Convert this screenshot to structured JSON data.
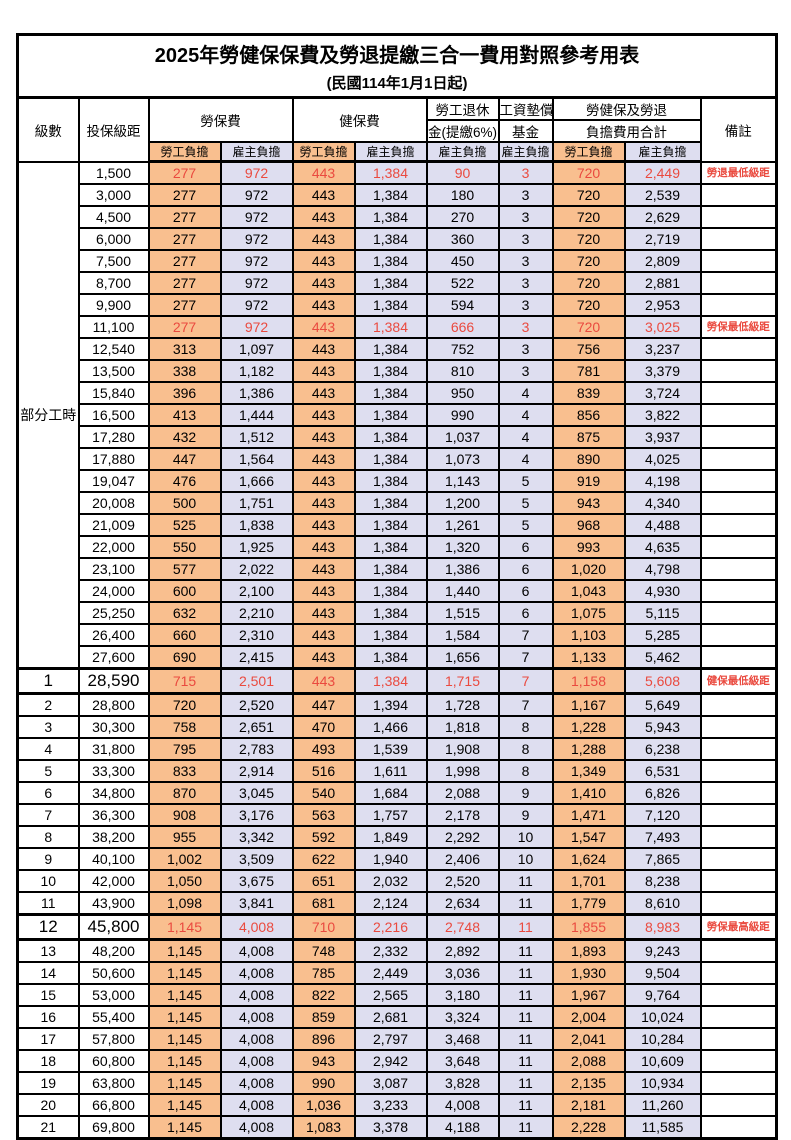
{
  "title": "2025年勞健保保費及勞退提繳三合一費用對照參考用表",
  "subtitle": "(民國114年1月1日起)",
  "columns": {
    "level": "級數",
    "bracket": "投保級距",
    "labor_fee": "勞保費",
    "health_fee": "健保費",
    "pension_line1": "勞工退休",
    "pension_line2": "金(提繳6%)",
    "wage_fund_line1": "工資墊償",
    "wage_fund_line2": "基金",
    "total_line1": "勞健保及勞退",
    "total_line2": "負擔費用合計",
    "remark": "備註",
    "employee_burden": "勞工負擔",
    "employer_burden": "雇主負擔"
  },
  "part_time": {
    "label": "部分工時",
    "row_count": 23
  },
  "colors": {
    "employee_bg": "#F9BF8F",
    "employer_bg": "#DEDEF0",
    "highlight_text": "#EA4A3F",
    "border": "#000000",
    "background": "#FFFFFF"
  },
  "rows": [
    {
      "bracket": "1,500",
      "values": [
        "277",
        "972",
        "443",
        "1,384",
        "90",
        "3",
        "720",
        "2,449"
      ],
      "remark": "勞退最低級距",
      "highlight": true
    },
    {
      "bracket": "3,000",
      "values": [
        "277",
        "972",
        "443",
        "1,384",
        "180",
        "3",
        "720",
        "2,539"
      ]
    },
    {
      "bracket": "4,500",
      "values": [
        "277",
        "972",
        "443",
        "1,384",
        "270",
        "3",
        "720",
        "2,629"
      ]
    },
    {
      "bracket": "6,000",
      "values": [
        "277",
        "972",
        "443",
        "1,384",
        "360",
        "3",
        "720",
        "2,719"
      ]
    },
    {
      "bracket": "7,500",
      "values": [
        "277",
        "972",
        "443",
        "1,384",
        "450",
        "3",
        "720",
        "2,809"
      ]
    },
    {
      "bracket": "8,700",
      "values": [
        "277",
        "972",
        "443",
        "1,384",
        "522",
        "3",
        "720",
        "2,881"
      ]
    },
    {
      "bracket": "9,900",
      "values": [
        "277",
        "972",
        "443",
        "1,384",
        "594",
        "3",
        "720",
        "2,953"
      ]
    },
    {
      "bracket": "11,100",
      "values": [
        "277",
        "972",
        "443",
        "1,384",
        "666",
        "3",
        "720",
        "3,025"
      ],
      "remark": "勞保最低級距",
      "highlight": true
    },
    {
      "bracket": "12,540",
      "values": [
        "313",
        "1,097",
        "443",
        "1,384",
        "752",
        "3",
        "756",
        "3,237"
      ]
    },
    {
      "bracket": "13,500",
      "values": [
        "338",
        "1,182",
        "443",
        "1,384",
        "810",
        "3",
        "781",
        "3,379"
      ]
    },
    {
      "bracket": "15,840",
      "values": [
        "396",
        "1,386",
        "443",
        "1,384",
        "950",
        "4",
        "839",
        "3,724"
      ]
    },
    {
      "bracket": "16,500",
      "values": [
        "413",
        "1,444",
        "443",
        "1,384",
        "990",
        "4",
        "856",
        "3,822"
      ]
    },
    {
      "bracket": "17,280",
      "values": [
        "432",
        "1,512",
        "443",
        "1,384",
        "1,037",
        "4",
        "875",
        "3,937"
      ]
    },
    {
      "bracket": "17,880",
      "values": [
        "447",
        "1,564",
        "443",
        "1,384",
        "1,073",
        "4",
        "890",
        "4,025"
      ]
    },
    {
      "bracket": "19,047",
      "values": [
        "476",
        "1,666",
        "443",
        "1,384",
        "1,143",
        "5",
        "919",
        "4,198"
      ]
    },
    {
      "bracket": "20,008",
      "values": [
        "500",
        "1,751",
        "443",
        "1,384",
        "1,200",
        "5",
        "943",
        "4,340"
      ]
    },
    {
      "bracket": "21,009",
      "values": [
        "525",
        "1,838",
        "443",
        "1,384",
        "1,261",
        "5",
        "968",
        "4,488"
      ]
    },
    {
      "bracket": "22,000",
      "values": [
        "550",
        "1,925",
        "443",
        "1,384",
        "1,320",
        "6",
        "993",
        "4,635"
      ]
    },
    {
      "bracket": "23,100",
      "values": [
        "577",
        "2,022",
        "443",
        "1,384",
        "1,386",
        "6",
        "1,020",
        "4,798"
      ]
    },
    {
      "bracket": "24,000",
      "values": [
        "600",
        "2,100",
        "443",
        "1,384",
        "1,440",
        "6",
        "1,043",
        "4,930"
      ]
    },
    {
      "bracket": "25,250",
      "values": [
        "632",
        "2,210",
        "443",
        "1,384",
        "1,515",
        "6",
        "1,075",
        "5,115"
      ]
    },
    {
      "bracket": "26,400",
      "values": [
        "660",
        "2,310",
        "443",
        "1,384",
        "1,584",
        "7",
        "1,103",
        "5,285"
      ]
    },
    {
      "bracket": "27,600",
      "values": [
        "690",
        "2,415",
        "443",
        "1,384",
        "1,656",
        "7",
        "1,133",
        "5,462"
      ]
    },
    {
      "level": "1",
      "bracket": "28,590",
      "values": [
        "715",
        "2,501",
        "443",
        "1,384",
        "1,715",
        "7",
        "1,158",
        "5,608"
      ],
      "remark": "健保最低級距",
      "highlight": true,
      "emphasis": true
    },
    {
      "level": "2",
      "bracket": "28,800",
      "values": [
        "720",
        "2,520",
        "447",
        "1,394",
        "1,728",
        "7",
        "1,167",
        "5,649"
      ]
    },
    {
      "level": "3",
      "bracket": "30,300",
      "values": [
        "758",
        "2,651",
        "470",
        "1,466",
        "1,818",
        "8",
        "1,228",
        "5,943"
      ]
    },
    {
      "level": "4",
      "bracket": "31,800",
      "values": [
        "795",
        "2,783",
        "493",
        "1,539",
        "1,908",
        "8",
        "1,288",
        "6,238"
      ]
    },
    {
      "level": "5",
      "bracket": "33,300",
      "values": [
        "833",
        "2,914",
        "516",
        "1,611",
        "1,998",
        "8",
        "1,349",
        "6,531"
      ]
    },
    {
      "level": "6",
      "bracket": "34,800",
      "values": [
        "870",
        "3,045",
        "540",
        "1,684",
        "2,088",
        "9",
        "1,410",
        "6,826"
      ]
    },
    {
      "level": "7",
      "bracket": "36,300",
      "values": [
        "908",
        "3,176",
        "563",
        "1,757",
        "2,178",
        "9",
        "1,471",
        "7,120"
      ]
    },
    {
      "level": "8",
      "bracket": "38,200",
      "values": [
        "955",
        "3,342",
        "592",
        "1,849",
        "2,292",
        "10",
        "1,547",
        "7,493"
      ]
    },
    {
      "level": "9",
      "bracket": "40,100",
      "values": [
        "1,002",
        "3,509",
        "622",
        "1,940",
        "2,406",
        "10",
        "1,624",
        "7,865"
      ]
    },
    {
      "level": "10",
      "bracket": "42,000",
      "values": [
        "1,050",
        "3,675",
        "651",
        "2,032",
        "2,520",
        "11",
        "1,701",
        "8,238"
      ]
    },
    {
      "level": "11",
      "bracket": "43,900",
      "values": [
        "1,098",
        "3,841",
        "681",
        "2,124",
        "2,634",
        "11",
        "1,779",
        "8,610"
      ]
    },
    {
      "level": "12",
      "bracket": "45,800",
      "values": [
        "1,145",
        "4,008",
        "710",
        "2,216",
        "2,748",
        "11",
        "1,855",
        "8,983"
      ],
      "remark": "勞保最高級距",
      "highlight": true,
      "emphasis": true
    },
    {
      "level": "13",
      "bracket": "48,200",
      "values": [
        "1,145",
        "4,008",
        "748",
        "2,332",
        "2,892",
        "11",
        "1,893",
        "9,243"
      ]
    },
    {
      "level": "14",
      "bracket": "50,600",
      "values": [
        "1,145",
        "4,008",
        "785",
        "2,449",
        "3,036",
        "11",
        "1,930",
        "9,504"
      ]
    },
    {
      "level": "15",
      "bracket": "53,000",
      "values": [
        "1,145",
        "4,008",
        "822",
        "2,565",
        "3,180",
        "11",
        "1,967",
        "9,764"
      ]
    },
    {
      "level": "16",
      "bracket": "55,400",
      "values": [
        "1,145",
        "4,008",
        "859",
        "2,681",
        "3,324",
        "11",
        "2,004",
        "10,024"
      ]
    },
    {
      "level": "17",
      "bracket": "57,800",
      "values": [
        "1,145",
        "4,008",
        "896",
        "2,797",
        "3,468",
        "11",
        "2,041",
        "10,284"
      ]
    },
    {
      "level": "18",
      "bracket": "60,800",
      "values": [
        "1,145",
        "4,008",
        "943",
        "2,942",
        "3,648",
        "11",
        "2,088",
        "10,609"
      ]
    },
    {
      "level": "19",
      "bracket": "63,800",
      "values": [
        "1,145",
        "4,008",
        "990",
        "3,087",
        "3,828",
        "11",
        "2,135",
        "10,934"
      ]
    },
    {
      "level": "20",
      "bracket": "66,800",
      "values": [
        "1,145",
        "4,008",
        "1,036",
        "3,233",
        "4,008",
        "11",
        "2,181",
        "11,260"
      ]
    },
    {
      "level": "21",
      "bracket": "69,800",
      "values": [
        "1,145",
        "4,008",
        "1,083",
        "3,378",
        "4,188",
        "11",
        "2,228",
        "11,585"
      ]
    }
  ]
}
